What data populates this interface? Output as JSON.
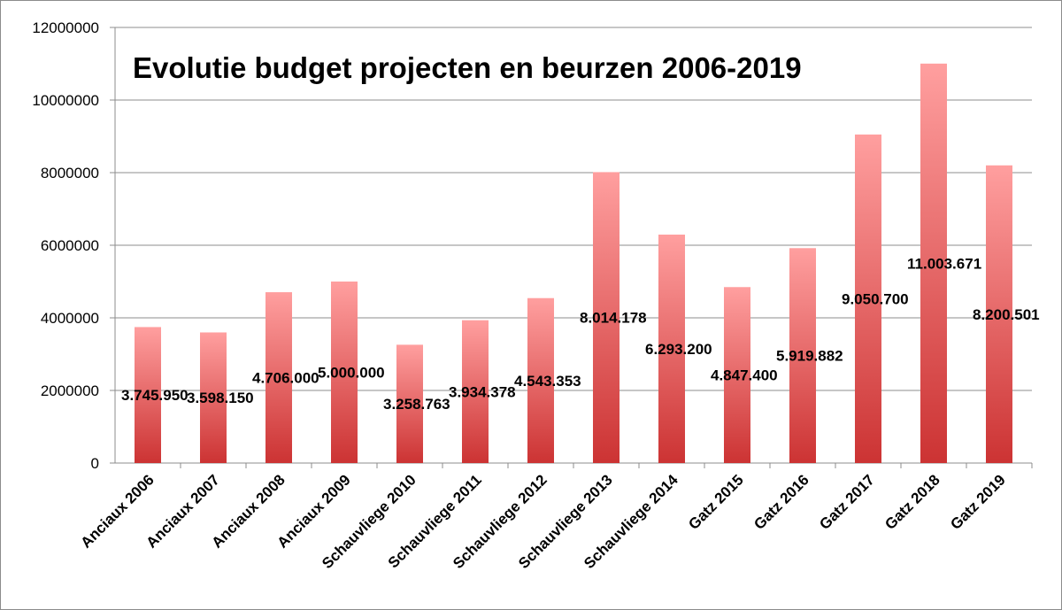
{
  "chart_data": {
    "type": "bar",
    "title": "Evolutie budget projecten en beurzen 2006-2019",
    "xlabel": "",
    "ylabel": "",
    "ylim": [
      0,
      12000000
    ],
    "yticks": [
      "0",
      "2000000",
      "4000000",
      "6000000",
      "8000000",
      "10000000",
      "12000000"
    ],
    "grid": true,
    "legend": "none",
    "categories": [
      "Anciaux 2006",
      "Anciaux 2007",
      "Anciaux 2008",
      "Anciaux 2009",
      "Schauvliege 2010",
      "Schauvliege 2011",
      "Schauvliege 2012",
      "Schauvliege 2013",
      "Schauvliege 2014",
      "Gatz 2015",
      "Gatz 2016",
      "Gatz 2017",
      "Gatz 2018",
      "Gatz 2019"
    ],
    "values": [
      3745950,
      3598150,
      4706000,
      5000000,
      3258763,
      3934378,
      4543353,
      8014178,
      6293200,
      4847400,
      5919882,
      9050700,
      11003671,
      8200501
    ],
    "data_labels": [
      "3.745.950",
      "3.598.150",
      "4.706.000",
      "5.000.000",
      "3.258.763",
      "3.934.378",
      "4.543.353",
      "8.014.178",
      "6.293.200",
      "4.847.400",
      "5.919.882",
      "9.050.700",
      "11.003.671",
      "8.200.501"
    ],
    "colors": {
      "bar_top": "#ff9f9f",
      "bar_bottom": "#cc3333",
      "grid": "#8c8c8c",
      "axis": "#8c8c8c"
    }
  }
}
